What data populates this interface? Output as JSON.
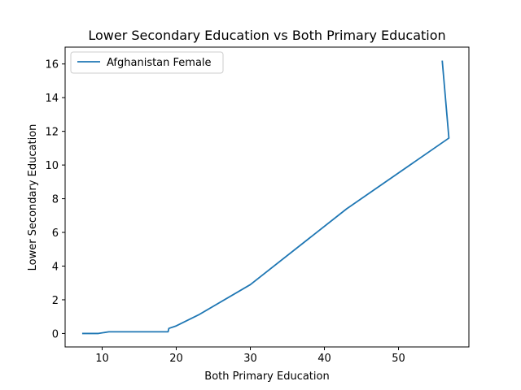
{
  "chart_data": {
    "type": "line",
    "title": "Lower Secondary Education vs Both Primary Education",
    "xlabel": "Both Primary Education",
    "ylabel": "Lower Secondary Education",
    "xlim": [
      5,
      59.5
    ],
    "ylim": [
      -0.8,
      17.0
    ],
    "xticks": [
      10,
      20,
      30,
      40,
      50
    ],
    "yticks": [
      0,
      2,
      4,
      6,
      8,
      10,
      12,
      14,
      16
    ],
    "grid": false,
    "legend_position": "top-left",
    "series": [
      {
        "name": "Afghanistan Female",
        "color": "#1f77b4",
        "points": [
          [
            7.3,
            0.0
          ],
          [
            9.5,
            0.0
          ],
          [
            10.9,
            0.1
          ],
          [
            18.9,
            0.1
          ],
          [
            19.0,
            0.3
          ],
          [
            20.0,
            0.45
          ],
          [
            23.0,
            1.1
          ],
          [
            30.0,
            2.9
          ],
          [
            43.0,
            7.4
          ],
          [
            56.8,
            11.6
          ],
          [
            55.9,
            16.2
          ]
        ]
      }
    ]
  }
}
